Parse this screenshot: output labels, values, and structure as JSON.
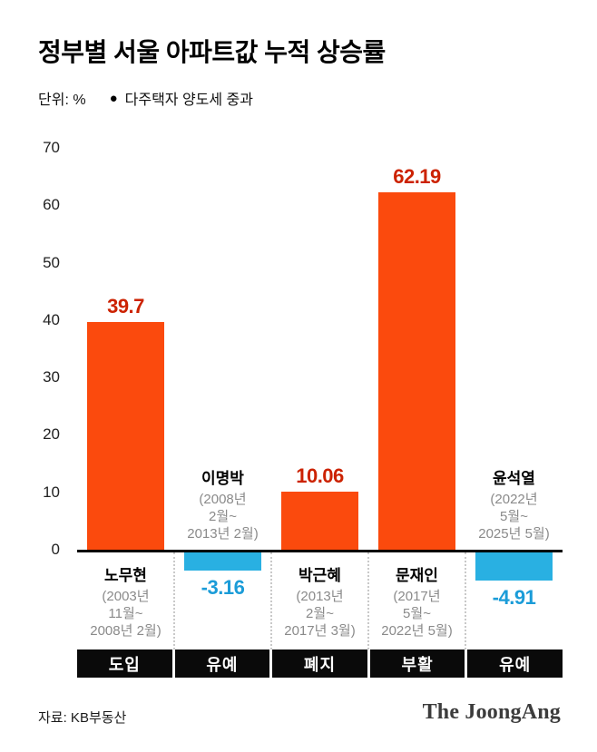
{
  "title": "정부별 서울 아파트값 누적 상승률",
  "unit_label": "단위: %",
  "legend": {
    "dot": "●",
    "label": "다주택자 양도세 중과"
  },
  "footer": {
    "source": "자료: KB부동산",
    "logo": "The JoongAng"
  },
  "colors": {
    "bar_positive": "#fb4a0d",
    "bar_negative": "#29b0e2",
    "value_positive": "#cc2200",
    "value_negative": "#1b9cd8",
    "banner": "#0a0a0a"
  },
  "chart_data": {
    "type": "bar",
    "title": "정부별 서울 아파트값 누적 상승률",
    "ylabel": "%",
    "ylim": [
      -10,
      70
    ],
    "yticks": [
      0,
      10,
      20,
      30,
      40,
      50,
      60,
      70
    ],
    "grid": false,
    "categories": [
      "노무현",
      "이명박",
      "박근혜",
      "문재인",
      "윤석열"
    ],
    "values": [
      39.7,
      -3.16,
      10.06,
      62.19,
      -4.91
    ],
    "value_labels": [
      "39.7",
      "-3.16",
      "10.06",
      "62.19",
      "-4.91"
    ],
    "terms": [
      [
        "(2003년",
        "11월~",
        "2008년 2월)"
      ],
      [
        "(2008년",
        "2월~",
        "2013년 2월)"
      ],
      [
        "(2013년",
        "2월~",
        "2017년 3월)"
      ],
      [
        "(2017년",
        "5월~",
        "2022년 5월)"
      ],
      [
        "(2022년",
        "5월~",
        "2025년 5월)"
      ]
    ],
    "tax_status": [
      "도입",
      "유예",
      "폐지",
      "부활",
      "유예"
    ]
  }
}
